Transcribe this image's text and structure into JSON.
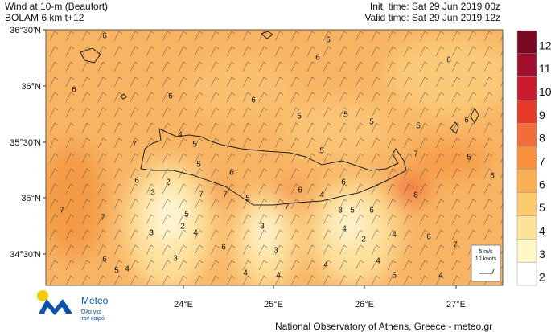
{
  "header": {
    "title": [
      "Wind at 10-m (Beaufort)",
      "BOLAM 6 km t+12"
    ],
    "init_time": "Init. time: Sat 29 Jun 2019 00z",
    "valid_time": "Valid time: Sat 29 Jun 2019 12z"
  },
  "map": {
    "lat_labels": [
      "36°30'N",
      "36°N",
      "35°30'N",
      "35°N",
      "34°30'N"
    ],
    "lon_labels": [
      "24°E",
      "25°E",
      "26°E",
      "27°E"
    ],
    "contour_labels": [
      "6",
      "6",
      "6",
      "6",
      "6",
      "5",
      "5",
      "5",
      "5",
      "5",
      "6",
      "6",
      "6",
      "7",
      "5",
      "4",
      "5",
      "6",
      "2",
      "3",
      "6",
      "7",
      "7",
      "5",
      "6",
      "4",
      "7",
      "6",
      "8",
      "6",
      "7",
      "6",
      "5",
      "7",
      "7",
      "3",
      "2",
      "4",
      "5",
      "3",
      "6",
      "3",
      "3",
      "3",
      "5",
      "4",
      "2",
      "4",
      "6",
      "7",
      "6",
      "5",
      "4",
      "4",
      "4",
      "4",
      "4",
      "4",
      "5"
    ]
  },
  "legend": {
    "levels": [
      12,
      11,
      10,
      9,
      8,
      7,
      6,
      5,
      4,
      3,
      2
    ],
    "colors": [
      "#7a0a24",
      "#a0102c",
      "#c81a2a",
      "#e53a2a",
      "#f26d3a",
      "#f7913f",
      "#f9af55",
      "#fbcb6e",
      "#fde399",
      "#fff6c6",
      "#ffffff"
    ]
  },
  "scale_box": {
    "speed": "5 m/s",
    "unit": "10 knots"
  },
  "footer": {
    "logo": "Meteo",
    "tagline": [
      "Όλα για",
      "τον καιρό"
    ],
    "credit": "National Observatory of Athens, Greece - meteo.gr"
  }
}
